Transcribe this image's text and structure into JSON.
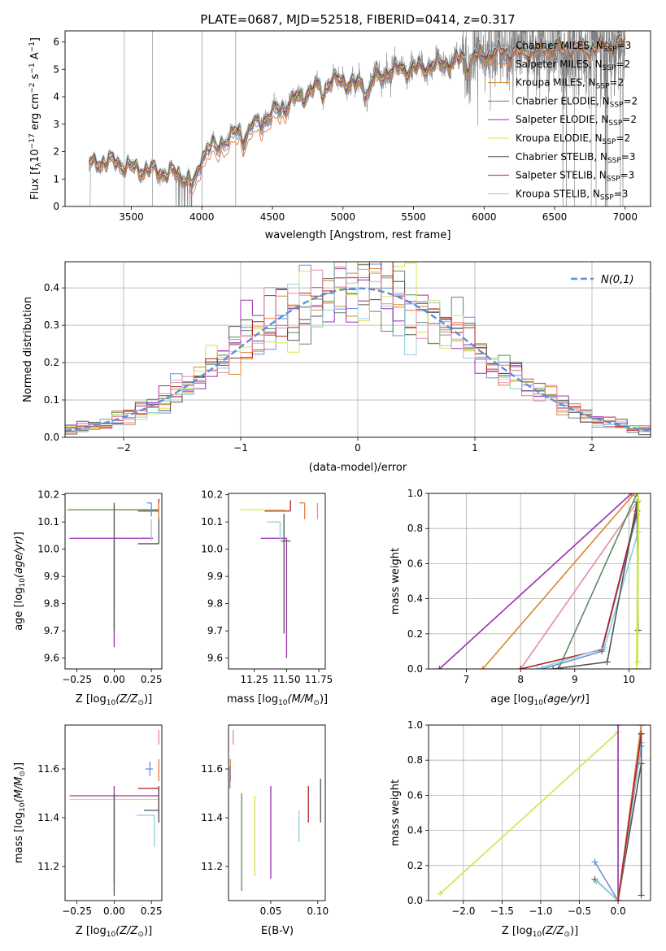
{
  "title": "PLATE=0687, MJD=52518, FIBERID=0414, z=0.317",
  "colors": {
    "chabrier_miles": "#6a8fdc",
    "salpeter_miles": "#e87c3e",
    "kroupa_miles": "#d9862e",
    "chabrier_elodie": "#5d8a62",
    "salpeter_elodie": "#9a2fb0",
    "kroupa_elodie": "#d8e34a",
    "chabrier_stelib": "#555555",
    "salpeter_stelib": "#b22222",
    "kroupa_stelib": "#8fd0d8",
    "pink": "#e88aa8",
    "yellowgreen": "#c8e84a",
    "data": "#808080",
    "normal": "#5b8fd9"
  },
  "chart_data": [
    {
      "id": "spectrum",
      "type": "line",
      "title": "PLATE=0687, MJD=52518, FIBERID=0414, z=0.317",
      "xlabel": "wavelength [Angstrom, rest frame]",
      "ylabel": "Flux [f_λ 10^-17 erg cm^-2 s^-1 A^-1]",
      "xlim": [
        3030,
        7180
      ],
      "ylim": [
        0,
        6.4
      ],
      "xticks": [
        3500,
        4000,
        4500,
        5000,
        5500,
        6000,
        6500,
        7000
      ],
      "yticks": [
        0,
        1,
        2,
        3,
        4,
        5,
        6
      ],
      "legend_position": "right",
      "legend": [
        {
          "label": "Chabrier MILES, N_SSP=3",
          "color": "#6a8fdc"
        },
        {
          "label": "Salpeter MILES, N_SSP=2",
          "color": "#e87c3e"
        },
        {
          "label": "Kroupa MILES, N_SSP=2",
          "color": "#d9862e"
        },
        {
          "label": "Chabrier ELODIE, N_SSP=2",
          "color": "#5d8a62"
        },
        {
          "label": "Salpeter ELODIE, N_SSP=2",
          "color": "#9a2fb0"
        },
        {
          "label": "Kroupa ELODIE, N_SSP=2",
          "color": "#d8e34a"
        },
        {
          "label": "Chabrier STELIB, N_SSP=3",
          "color": "#555555"
        },
        {
          "label": "Salpeter STELIB, N_SSP=3",
          "color": "#b22222"
        },
        {
          "label": "Kroupa STELIB, N_SSP=3",
          "color": "#8fd0d8"
        }
      ],
      "continuum": {
        "x": [
          3200,
          3250,
          3300,
          3400,
          3500,
          3600,
          3700,
          3800,
          3850,
          3900,
          3950,
          4000,
          4050,
          4100,
          4200,
          4300,
          4400,
          4500,
          4600,
          4700,
          4800,
          4900,
          5000,
          5100,
          5200,
          5300,
          5400,
          5500,
          5600,
          5700,
          5800,
          5900,
          6000,
          6100,
          6200,
          6300,
          6400,
          6500,
          6600,
          6700,
          6800,
          6900,
          7000
        ],
        "y": [
          1.45,
          1.6,
          1.65,
          1.6,
          1.4,
          1.35,
          1.25,
          1.2,
          1.15,
          1.05,
          1.3,
          2.05,
          2.2,
          2.25,
          2.5,
          2.9,
          3.0,
          3.4,
          3.7,
          4.0,
          4.3,
          4.5,
          4.6,
          4.4,
          4.7,
          4.9,
          5.0,
          5.0,
          5.1,
          5.2,
          5.3,
          5.45,
          5.5,
          5.6,
          5.6,
          5.6,
          5.7,
          5.8,
          5.8,
          5.7,
          5.8,
          5.9,
          5.9
        ]
      }
    },
    {
      "id": "residuals",
      "type": "histogram",
      "xlabel": "(data-model)/error",
      "ylabel": "Normed distribution",
      "xlim": [
        -2.5,
        2.5
      ],
      "ylim": [
        0,
        0.47
      ],
      "xticks": [
        -2,
        -1,
        0,
        1,
        2
      ],
      "yticks": [
        0.0,
        0.1,
        0.2,
        0.3,
        0.4
      ],
      "legend_position": "upper right",
      "legend": [
        {
          "label": "N(0,1)",
          "color": "#5b8fd9",
          "style": "dashed"
        }
      ],
      "bin_width": 0.1
    },
    {
      "id": "age_vs_Z",
      "type": "errorbar",
      "xlabel": "Z [log10(Z/Z⊙)]",
      "ylabel": "age [log10(age/yr)]",
      "xlim": [
        -0.33,
        0.32
      ],
      "ylim": [
        9.56,
        10.205
      ],
      "xticks": [
        -0.25,
        0.0,
        0.25
      ],
      "yticks": [
        9.6,
        9.7,
        9.8,
        9.9,
        10.0,
        10.1,
        10.2
      ],
      "points": [
        {
          "color": "#b22222",
          "x": 0.3,
          "y": 10.145,
          "xerr": [
            0.3,
            0.0
          ],
          "yerr": [
            0.0,
            0.04
          ]
        },
        {
          "color": "#c8e84a",
          "x": 0.28,
          "y": 10.145,
          "xerr": [
            0.6,
            0.0
          ],
          "yerr": [
            0.0,
            0.0
          ]
        },
        {
          "color": "#5d8a62",
          "x": 0.29,
          "y": 10.145,
          "xerr": [
            0.6,
            0.0
          ],
          "yerr": [
            0.0,
            0.0
          ]
        },
        {
          "color": "#9a2fb0",
          "x": 0.0,
          "y": 10.04,
          "xerr": [
            0.3,
            0.26
          ],
          "yerr": [
            0.4,
            0.0
          ]
        },
        {
          "color": "#555555",
          "x": 0.3,
          "y": 10.02,
          "xerr": [
            0.14,
            0.0
          ],
          "yerr": [
            0.0,
            0.1
          ]
        },
        {
          "color": "#555555",
          "x": 0.3,
          "y": 10.14,
          "xerr": [
            0.14,
            0.0
          ],
          "yerr": [
            0.0,
            0.0
          ]
        },
        {
          "color": "#d8e34a",
          "x": 0.0,
          "y": 10.14,
          "xerr": [
            0.0,
            0.0
          ],
          "yerr": [
            0.36,
            0.0
          ]
        },
        {
          "color": "#6a8fdc",
          "x": 0.25,
          "y": 10.17,
          "xerr": [
            0.03,
            0.0
          ],
          "yerr": [
            0.05,
            0.0
          ]
        },
        {
          "color": "#e87c3e",
          "x": 0.3,
          "y": 10.17,
          "xerr": [
            0.0,
            0.0
          ],
          "yerr": [
            0.06,
            0.0
          ]
        },
        {
          "color": "#8fd0d8",
          "x": 0.25,
          "y": 10.11,
          "xerr": [
            0.0,
            0.0
          ],
          "yerr": [
            0.08,
            0.0
          ]
        },
        {
          "color": "#555555",
          "x": 0.0,
          "y": 10.17,
          "xerr": [
            0.0,
            0.0
          ],
          "yerr": [
            0.47,
            0.0
          ]
        }
      ]
    },
    {
      "id": "age_vs_mass",
      "type": "errorbar",
      "xlabel": "mass [log10(M/M⊙)]",
      "xlim": [
        11.05,
        11.8
      ],
      "ylim": [
        9.56,
        10.205
      ],
      "xticks": [
        11.25,
        11.5,
        11.75
      ],
      "yticks": [
        9.6,
        9.7,
        9.8,
        9.9,
        10.0,
        10.1,
        10.2
      ],
      "points": [
        {
          "color": "#c8e84a",
          "x": 11.49,
          "y": 10.145,
          "xerr": [
            0.35,
            0.0
          ],
          "yerr": [
            0.0,
            0.0
          ]
        },
        {
          "color": "#b22222",
          "x": 11.53,
          "y": 10.14,
          "xerr": [
            0.2,
            0.0
          ],
          "yerr": [
            0.0,
            0.04
          ]
        },
        {
          "color": "#9a2fb0",
          "x": 11.5,
          "y": 10.04,
          "xerr": [
            0.2,
            0.0
          ],
          "yerr": [
            0.44,
            0.0
          ]
        },
        {
          "color": "#555555",
          "x": 11.48,
          "y": 10.03,
          "xerr": [
            0.02,
            0.05
          ],
          "yerr": [
            0.34,
            0.1
          ]
        },
        {
          "color": "#6a8fdc",
          "x": 11.6,
          "y": 10.17,
          "xerr": [
            0.0,
            0.0
          ],
          "yerr": [
            0.0,
            0.0
          ]
        },
        {
          "color": "#e87c3e",
          "x": 11.64,
          "y": 10.17,
          "xerr": [
            0.04,
            0.0
          ],
          "yerr": [
            0.06,
            0.0
          ]
        },
        {
          "color": "#e88aa8",
          "x": 11.74,
          "y": 10.17,
          "xerr": [
            0.0,
            0.0
          ],
          "yerr": [
            0.06,
            0.0
          ]
        },
        {
          "color": "#8fd0d8",
          "x": 11.45,
          "y": 10.1,
          "xerr": [
            0.1,
            0.0
          ],
          "yerr": [
            0.07,
            0.0
          ]
        }
      ]
    },
    {
      "id": "weight_vs_age",
      "type": "line",
      "xlabel": "age [log10(age/yr)]",
      "ylabel": "mass weight",
      "xlim": [
        6.3,
        10.4
      ],
      "ylim": [
        0.0,
        1.0
      ],
      "xticks": [
        7,
        8,
        9,
        10
      ],
      "yticks": [
        0.0,
        0.2,
        0.4,
        0.6,
        0.8,
        1.0
      ],
      "series": [
        {
          "color": "#9a2fb0",
          "x": [
            6.5,
            10.05
          ],
          "y": [
            0.0,
            1.0
          ]
        },
        {
          "color": "#d9862e",
          "x": [
            7.3,
            10.1
          ],
          "y": [
            0.0,
            1.0
          ]
        },
        {
          "color": "#e88aa8",
          "x": [
            8.0,
            10.15
          ],
          "y": [
            0.0,
            0.95
          ]
        },
        {
          "color": "#5d8a62",
          "x": [
            8.7,
            10.15
          ],
          "y": [
            0.0,
            1.0
          ]
        },
        {
          "color": "#6a8fdc",
          "x": [
            8.4,
            9.5,
            10.15
          ],
          "y": [
            0.0,
            0.1,
            0.88
          ]
        },
        {
          "color": "#b22222",
          "x": [
            8.0,
            9.5,
            10.15
          ],
          "y": [
            0.0,
            0.11,
            0.9
          ]
        },
        {
          "color": "#8fd0d8",
          "x": [
            8.3,
            9.55,
            10.17
          ],
          "y": [
            0.0,
            0.12,
            0.78
          ]
        },
        {
          "color": "#555555",
          "x": [
            8.6,
            9.6,
            10.15,
            10.17
          ],
          "y": [
            0.0,
            0.04,
            0.95,
            0.22
          ]
        },
        {
          "color": "#d8e34a",
          "x": [
            10.14,
            10.17
          ],
          "y": [
            0.0,
            1.0
          ]
        },
        {
          "color": "#c8e84a",
          "x": [
            10.16,
            10.18
          ],
          "y": [
            0.04,
            0.96
          ]
        }
      ]
    },
    {
      "id": "mass_vs_Z",
      "type": "errorbar",
      "xlabel": "Z [log10(Z/Z⊙)]",
      "ylabel": "mass [log10(M/M⊙)]",
      "xlim": [
        -0.33,
        0.32
      ],
      "ylim": [
        11.06,
        11.78
      ],
      "xticks": [
        -0.25,
        0.0,
        0.25
      ],
      "yticks": [
        11.2,
        11.4,
        11.6
      ],
      "points": [
        {
          "color": "#9a2fb0",
          "x": 0.0,
          "y": 11.49,
          "xerr": [
            0.3,
            0.3
          ],
          "yerr": [
            0.36,
            0.04
          ]
        },
        {
          "color": "#c8e84a",
          "x": 0.0,
          "y": 11.475,
          "xerr": [
            0.3,
            0.3
          ],
          "yerr": [
            0.3,
            0.0
          ]
        },
        {
          "color": "#b22222",
          "x": 0.3,
          "y": 11.52,
          "xerr": [
            0.14,
            0.0
          ],
          "yerr": [
            0.14,
            0.0
          ]
        },
        {
          "color": "#555555",
          "x": 0.3,
          "y": 11.43,
          "xerr": [
            0.1,
            0.0
          ],
          "yerr": [
            0.05,
            0.1
          ]
        },
        {
          "color": "#8fd0d8",
          "x": 0.27,
          "y": 11.41,
          "xerr": [
            0.12,
            0.0
          ],
          "yerr": [
            0.13,
            0.0
          ]
        },
        {
          "color": "#6a8fdc",
          "x": 0.24,
          "y": 11.6,
          "xerr": [
            0.03,
            0.02
          ],
          "yerr": [
            0.03,
            0.03
          ]
        },
        {
          "color": "#e87c3e",
          "x": 0.3,
          "y": 11.6,
          "xerr": [
            0.0,
            0.0
          ],
          "yerr": [
            0.05,
            0.04
          ]
        },
        {
          "color": "#e88aa8",
          "x": 0.3,
          "y": 11.73,
          "xerr": [
            0.0,
            0.0
          ],
          "yerr": [
            0.03,
            0.03
          ]
        },
        {
          "color": "#555555",
          "x": 0.0,
          "y": 11.5,
          "xerr": [
            0.0,
            0.0
          ],
          "yerr": [
            0.42,
            0.0
          ]
        }
      ]
    },
    {
      "id": "mass_vs_ebv",
      "type": "errorbar",
      "xlabel": "E(B-V)",
      "xlim": [
        0.005,
        0.108
      ],
      "ylim": [
        11.06,
        11.78
      ],
      "xticks": [
        0.05,
        0.1
      ],
      "yticks": [
        11.2,
        11.4,
        11.6
      ],
      "points": [
        {
          "color": "#e87c3e",
          "x": 0.007,
          "y": 11.6,
          "xerr": [
            0.0,
            0.0
          ],
          "yerr": [
            0.05,
            0.04
          ]
        },
        {
          "color": "#6a8fdc",
          "x": 0.0065,
          "y": 11.57,
          "xerr": [
            0.0,
            0.0
          ],
          "yerr": [
            0.05,
            0.04
          ]
        },
        {
          "color": "#e88aa8",
          "x": 0.01,
          "y": 11.73,
          "xerr": [
            0.0,
            0.0
          ],
          "yerr": [
            0.03,
            0.03
          ]
        },
        {
          "color": "#5d8a62",
          "x": 0.019,
          "y": 11.3,
          "xerr": [
            0.0,
            0.0
          ],
          "yerr": [
            0.2,
            0.2
          ]
        },
        {
          "color": "#d8e34a",
          "x": 0.033,
          "y": 11.32,
          "xerr": [
            0.0,
            0.0
          ],
          "yerr": [
            0.16,
            0.17
          ]
        },
        {
          "color": "#9a2fb0",
          "x": 0.05,
          "y": 11.34,
          "xerr": [
            0.0,
            0.0
          ],
          "yerr": [
            0.19,
            0.19
          ]
        },
        {
          "color": "#8fd0d8",
          "x": 0.08,
          "y": 11.36,
          "xerr": [
            0.0,
            0.0
          ],
          "yerr": [
            0.06,
            0.07
          ]
        },
        {
          "color": "#b22222",
          "x": 0.09,
          "y": 11.45,
          "xerr": [
            0.0,
            0.0
          ],
          "yerr": [
            0.07,
            0.08
          ]
        },
        {
          "color": "#555555",
          "x": 0.103,
          "y": 11.47,
          "xerr": [
            0.0,
            0.0
          ],
          "yerr": [
            0.09,
            0.09
          ]
        }
      ]
    },
    {
      "id": "weight_vs_Z",
      "type": "line",
      "xlabel": "Z [log10(Z/Z⊙)]",
      "ylabel": "mass weight",
      "xlim": [
        -2.45,
        0.42
      ],
      "ylim": [
        0.0,
        1.0
      ],
      "xticks": [
        -2.0,
        -1.5,
        -1.0,
        -0.5,
        0.0
      ],
      "yticks": [
        0.0,
        0.2,
        0.4,
        0.6,
        0.8,
        1.0
      ],
      "series": [
        {
          "color": "#c8e84a",
          "x": [
            -2.3,
            0.0
          ],
          "y": [
            0.04,
            0.96
          ]
        },
        {
          "color": "#9a2fb0",
          "x": [
            0.0,
            0.0
          ],
          "y": [
            0.0,
            1.0
          ]
        },
        {
          "color": "#6a8fdc",
          "x": [
            -0.3,
            0.0,
            0.3
          ],
          "y": [
            0.22,
            0.0,
            0.88
          ]
        },
        {
          "color": "#555555",
          "x": [
            -0.3,
            0.0,
            0.3
          ],
          "y": [
            0.12,
            0.0,
            0.78
          ]
        },
        {
          "color": "#8fd0d8",
          "x": [
            -0.28,
            0.0,
            0.3
          ],
          "y": [
            0.11,
            0.0,
            0.9
          ]
        },
        {
          "color": "#5d8a62",
          "x": [
            0.0,
            0.3
          ],
          "y": [
            0.0,
            1.0
          ]
        },
        {
          "color": "#e87c3e",
          "x": [
            0.0,
            0.3
          ],
          "y": [
            0.0,
            1.0
          ]
        },
        {
          "color": "#b22222",
          "x": [
            0.0,
            0.3
          ],
          "y": [
            0.0,
            0.95
          ]
        },
        {
          "color": "#555555",
          "x": [
            0.3,
            0.3
          ],
          "y": [
            0.03,
            0.95
          ]
        }
      ]
    }
  ]
}
